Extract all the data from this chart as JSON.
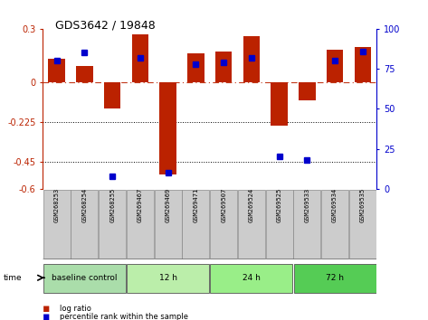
{
  "title": "GDS3642 / 19848",
  "samples": [
    "GSM268253",
    "GSM268254",
    "GSM268255",
    "GSM269467",
    "GSM269469",
    "GSM269471",
    "GSM269507",
    "GSM269524",
    "GSM269525",
    "GSM269533",
    "GSM269534",
    "GSM269535"
  ],
  "log_ratio": [
    0.13,
    0.09,
    -0.15,
    0.27,
    -0.52,
    0.16,
    0.17,
    0.26,
    -0.245,
    -0.1,
    0.18,
    0.2
  ],
  "percentile_rank": [
    80,
    85,
    8,
    82,
    10,
    78,
    79,
    82,
    20,
    18,
    80,
    86
  ],
  "groups": [
    {
      "label": "baseline control",
      "start": 0,
      "end": 3
    },
    {
      "label": "12 h",
      "start": 3,
      "end": 6
    },
    {
      "label": "24 h",
      "start": 6,
      "end": 9
    },
    {
      "label": "72 h",
      "start": 9,
      "end": 12
    }
  ],
  "group_colors": [
    "#aaddaa",
    "#bbeeaa",
    "#99ee88",
    "#55cc55"
  ],
  "ylim_left": [
    -0.6,
    0.3
  ],
  "ylim_right": [
    0,
    100
  ],
  "yticks_left": [
    0.3,
    0.0,
    -0.225,
    -0.45,
    -0.6
  ],
  "ytick_labels_left": [
    "0.3",
    "0",
    "-0.225",
    "-0.45",
    "-0.6"
  ],
  "yticks_right": [
    100,
    75,
    50,
    25,
    0
  ],
  "ytick_labels_right": [
    "100",
    "75",
    "50",
    "25",
    "0"
  ],
  "bar_color": "#BB2200",
  "dot_color": "#0000CC",
  "dotted_lines": [
    -0.225,
    -0.45
  ],
  "bar_width": 0.6
}
